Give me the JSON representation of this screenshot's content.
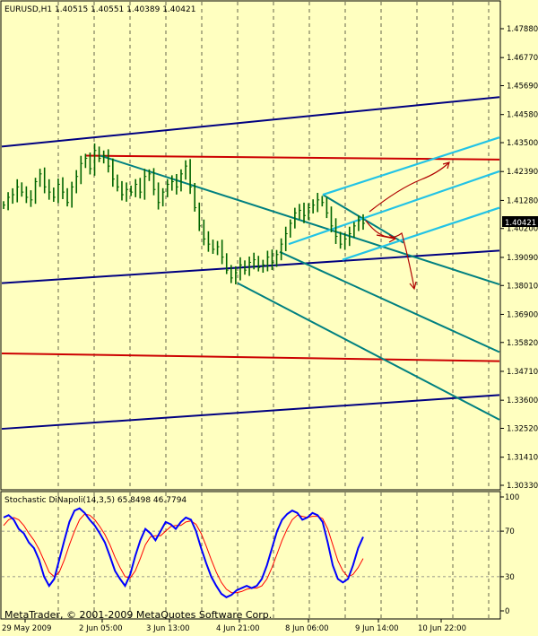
{
  "header": {
    "symbol_line": "EURUSD,H1  1.40515 1.40551 1.40389 1.40421",
    "current_price": "1.40421"
  },
  "indicator": {
    "title": "Stochastic DiNapoli(14,3,5) 65.8498 46.7794",
    "levels": [
      "100",
      "70",
      "30",
      "0"
    ]
  },
  "footer": {
    "copyright": "MetaTrader, © 2001-2009 MetaQuotes Software Corp."
  },
  "colors": {
    "background": "#ffffc0",
    "price_bars": "#006400",
    "stoch_main": "#0000ff",
    "stoch_signal": "#ff0000",
    "navy_lines": "#000080",
    "red_lines": "#cc0000",
    "teal_lines": "#008080",
    "cyan_lines": "#22c3e6",
    "arrows": "#b00000",
    "grid": "#000000"
  },
  "chart_data": [
    {
      "type": "line",
      "subtype": "candlestick-hl",
      "symbol": "EURUSD",
      "timeframe": "H1",
      "ohlc_last": {
        "open": 1.40515,
        "high": 1.40551,
        "low": 1.40389,
        "close": 1.40421
      },
      "y_ticks": [
        "1.47880",
        "1.46770",
        "1.45690",
        "1.44580",
        "1.43500",
        "1.42390",
        "1.41280",
        "1.40200",
        "1.39090",
        "1.38010",
        "1.36900",
        "1.35820",
        "1.34710",
        "1.33600",
        "1.32520",
        "1.31410",
        "1.30330"
      ],
      "ylim": [
        1.3033,
        1.4788
      ],
      "x_ticks": [
        "29 May 2009",
        "2 Jun 05:00",
        "3 Jun 13:00",
        "4 Jun 21:00",
        "8 Jun 06:00",
        "9 Jun 14:00",
        "10 Jun 22:00"
      ],
      "grid": "dashed",
      "series": [
        {
          "values": [
            1.411,
            1.414,
            1.415,
            1.418,
            1.416,
            1.414,
            1.413,
            1.42,
            1.423,
            1.418,
            1.416,
            1.414,
            1.419,
            1.416,
            1.412,
            1.418,
            1.422,
            1.427,
            1.429,
            1.425,
            1.432,
            1.429,
            1.43,
            1.426,
            1.421,
            1.418,
            1.415,
            1.417,
            1.416,
            1.419,
            1.416,
            1.422,
            1.423,
            1.417,
            1.412,
            1.416,
            1.419,
            1.42,
            1.418,
            1.423,
            1.426,
            1.418,
            1.41,
            1.403,
            1.398,
            1.396,
            1.394,
            1.395,
            1.391,
            1.386,
            1.383,
            1.385,
            1.388,
            1.386,
            1.389,
            1.39,
            1.387,
            1.388,
            1.391,
            1.389,
            1.392,
            1.396,
            1.4,
            1.404,
            1.408,
            1.409,
            1.407,
            1.41,
            1.411,
            1.413,
            1.412,
            1.408,
            1.403,
            1.399,
            1.396,
            1.398,
            1.4,
            1.403,
            1.405,
            1.404
          ]
        }
      ],
      "trend_lines": [
        {
          "name": "",
          "color": "navy",
          "from": [
            "29 May 2009",
            1.4335
          ],
          "to": [
            "10 Jun 22:00+",
            1.4525
          ]
        },
        {
          "name": "",
          "color": "navy",
          "from": [
            "29 May 2009",
            1.381
          ],
          "to": [
            "10 Jun 22:00+",
            1.3935
          ]
        },
        {
          "name": "",
          "color": "navy",
          "from": [
            "29 May 2009",
            1.325
          ],
          "to": [
            "10 Jun 22:00+",
            1.338
          ]
        },
        {
          "name": "",
          "color": "red",
          "from": [
            "2 Jun 05:00",
            1.43
          ],
          "to": [
            "10 Jun 22:00+",
            1.4285
          ]
        },
        {
          "name": "",
          "color": "red",
          "from": [
            "29 May 2009",
            1.354
          ],
          "to": [
            "10 Jun 22:00+",
            1.351
          ]
        }
      ]
    },
    {
      "type": "line",
      "title": "Stochastic DiNapoli(14,3,5)",
      "ylim": [
        0,
        100
      ],
      "y_ticks": [
        "100",
        "70",
        "30",
        "0"
      ],
      "series": [
        {
          "values": [
            82,
            84,
            80,
            72,
            68,
            60,
            55,
            45,
            30,
            22,
            28,
            45,
            62,
            78,
            88,
            90,
            86,
            80,
            75,
            68,
            60,
            48,
            35,
            28,
            22,
            32,
            48,
            62,
            72,
            68,
            62,
            70,
            78,
            76,
            72,
            78,
            82,
            80,
            70,
            55,
            42,
            30,
            22,
            15,
            12,
            14,
            18,
            20,
            22,
            20,
            22,
            28,
            40,
            55,
            70,
            80,
            85,
            88,
            86,
            80,
            82,
            86,
            84,
            78,
            60,
            40,
            28,
            25,
            28,
            40,
            55,
            65
          ]
        },
        {
          "values": [
            75,
            80,
            82,
            80,
            75,
            68,
            62,
            54,
            44,
            34,
            30,
            34,
            45,
            58,
            70,
            80,
            85,
            84,
            80,
            74,
            67,
            58,
            47,
            38,
            30,
            29,
            35,
            46,
            58,
            65,
            66,
            66,
            70,
            74,
            75,
            75,
            78,
            79,
            76,
            68,
            57,
            45,
            34,
            25,
            19,
            16,
            16,
            17,
            19,
            20,
            20,
            22,
            28,
            38,
            50,
            62,
            72,
            80,
            84,
            83,
            82,
            83,
            83,
            81,
            72,
            58,
            44,
            35,
            30,
            32,
            38,
            46
          ]
        }
      ]
    }
  ]
}
